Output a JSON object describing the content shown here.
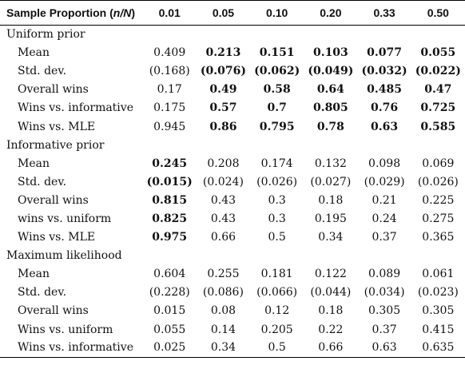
{
  "header": {
    "label_prefix": "Sample Proportion (",
    "label_var": "n/N",
    "label_suffix": ")",
    "columns": [
      "0.01",
      "0.05",
      "0.10",
      "0.20",
      "0.33",
      "0.50"
    ]
  },
  "groups": [
    {
      "title": "Uniform prior",
      "rows": [
        {
          "label": "Mean",
          "cells": [
            {
              "v": "0.409",
              "bold": false
            },
            {
              "v": "0.213",
              "bold": true
            },
            {
              "v": "0.151",
              "bold": true
            },
            {
              "v": "0.103",
              "bold": true
            },
            {
              "v": "0.077",
              "bold": true
            },
            {
              "v": "0.055",
              "bold": true
            }
          ]
        },
        {
          "label": "Std. dev.",
          "cells": [
            {
              "v": "(0.168)",
              "bold": false
            },
            {
              "v": "(0.076)",
              "bold": true
            },
            {
              "v": "(0.062)",
              "bold": true
            },
            {
              "v": "(0.049)",
              "bold": true
            },
            {
              "v": "(0.032)",
              "bold": true
            },
            {
              "v": "(0.022)",
              "bold": true
            }
          ]
        },
        {
          "label": "Overall wins",
          "cells": [
            {
              "v": "0.17",
              "bold": false
            },
            {
              "v": "0.49",
              "bold": true
            },
            {
              "v": "0.58",
              "bold": true
            },
            {
              "v": "0.64",
              "bold": true
            },
            {
              "v": "0.485",
              "bold": true
            },
            {
              "v": "0.47",
              "bold": true
            }
          ]
        },
        {
          "label": "Wins vs. informative",
          "cells": [
            {
              "v": "0.175",
              "bold": false
            },
            {
              "v": "0.57",
              "bold": true
            },
            {
              "v": "0.7",
              "bold": true
            },
            {
              "v": "0.805",
              "bold": true
            },
            {
              "v": "0.76",
              "bold": true
            },
            {
              "v": "0.725",
              "bold": true
            }
          ]
        },
        {
          "label": "Wins vs. MLE",
          "cells": [
            {
              "v": "0.945",
              "bold": false
            },
            {
              "v": "0.86",
              "bold": true
            },
            {
              "v": "0.795",
              "bold": true
            },
            {
              "v": "0.78",
              "bold": true
            },
            {
              "v": "0.63",
              "bold": true
            },
            {
              "v": "0.585",
              "bold": true
            }
          ]
        }
      ]
    },
    {
      "title": "Informative prior",
      "rows": [
        {
          "label": "Mean",
          "cells": [
            {
              "v": "0.245",
              "bold": true
            },
            {
              "v": "0.208",
              "bold": false
            },
            {
              "v": "0.174",
              "bold": false
            },
            {
              "v": "0.132",
              "bold": false
            },
            {
              "v": "0.098",
              "bold": false
            },
            {
              "v": "0.069",
              "bold": false
            }
          ]
        },
        {
          "label": "Std. dev.",
          "cells": [
            {
              "v": "(0.015)",
              "bold": true
            },
            {
              "v": "(0.024)",
              "bold": false
            },
            {
              "v": "(0.026)",
              "bold": false
            },
            {
              "v": "(0.027)",
              "bold": false
            },
            {
              "v": "(0.029)",
              "bold": false
            },
            {
              "v": "(0.026)",
              "bold": false
            }
          ]
        },
        {
          "label": "Overall wins",
          "cells": [
            {
              "v": "0.815",
              "bold": true
            },
            {
              "v": "0.43",
              "bold": false
            },
            {
              "v": "0.3",
              "bold": false
            },
            {
              "v": "0.18",
              "bold": false
            },
            {
              "v": "0.21",
              "bold": false
            },
            {
              "v": "0.225",
              "bold": false
            }
          ]
        },
        {
          "label": "wins vs. uniform",
          "cells": [
            {
              "v": "0.825",
              "bold": true
            },
            {
              "v": "0.43",
              "bold": false
            },
            {
              "v": "0.3",
              "bold": false
            },
            {
              "v": "0.195",
              "bold": false
            },
            {
              "v": "0.24",
              "bold": false
            },
            {
              "v": "0.275",
              "bold": false
            }
          ]
        },
        {
          "label": "Wins vs. MLE",
          "cells": [
            {
              "v": "0.975",
              "bold": true
            },
            {
              "v": "0.66",
              "bold": false
            },
            {
              "v": "0.5",
              "bold": false
            },
            {
              "v": "0.34",
              "bold": false
            },
            {
              "v": "0.37",
              "bold": false
            },
            {
              "v": "0.365",
              "bold": false
            }
          ]
        }
      ]
    },
    {
      "title": "Maximum likelihood",
      "rows": [
        {
          "label": "Mean",
          "cells": [
            {
              "v": "0.604",
              "bold": false
            },
            {
              "v": "0.255",
              "bold": false
            },
            {
              "v": "0.181",
              "bold": false
            },
            {
              "v": "0.122",
              "bold": false
            },
            {
              "v": "0.089",
              "bold": false
            },
            {
              "v": "0.061",
              "bold": false
            }
          ]
        },
        {
          "label": "Std. dev.",
          "cells": [
            {
              "v": "(0.228)",
              "bold": false
            },
            {
              "v": "(0.086)",
              "bold": false
            },
            {
              "v": "(0.066)",
              "bold": false
            },
            {
              "v": "(0.044)",
              "bold": false
            },
            {
              "v": "(0.034)",
              "bold": false
            },
            {
              "v": "(0.023)",
              "bold": false
            }
          ]
        },
        {
          "label": "Overall wins",
          "cells": [
            {
              "v": "0.015",
              "bold": false
            },
            {
              "v": "0.08",
              "bold": false
            },
            {
              "v": "0.12",
              "bold": false
            },
            {
              "v": "0.18",
              "bold": false
            },
            {
              "v": "0.305",
              "bold": false
            },
            {
              "v": "0.305",
              "bold": false
            }
          ]
        },
        {
          "label": "Wins vs. uniform",
          "cells": [
            {
              "v": "0.055",
              "bold": false
            },
            {
              "v": "0.14",
              "bold": false
            },
            {
              "v": "0.205",
              "bold": false
            },
            {
              "v": "0.22",
              "bold": false
            },
            {
              "v": "0.37",
              "bold": false
            },
            {
              "v": "0.415",
              "bold": false
            }
          ]
        },
        {
          "label": "Wins vs. informative",
          "cells": [
            {
              "v": "0.025",
              "bold": false
            },
            {
              "v": "0.34",
              "bold": false
            },
            {
              "v": "0.5",
              "bold": false
            },
            {
              "v": "0.66",
              "bold": false
            },
            {
              "v": "0.63",
              "bold": false
            },
            {
              "v": "0.635",
              "bold": false
            }
          ]
        }
      ]
    }
  ]
}
